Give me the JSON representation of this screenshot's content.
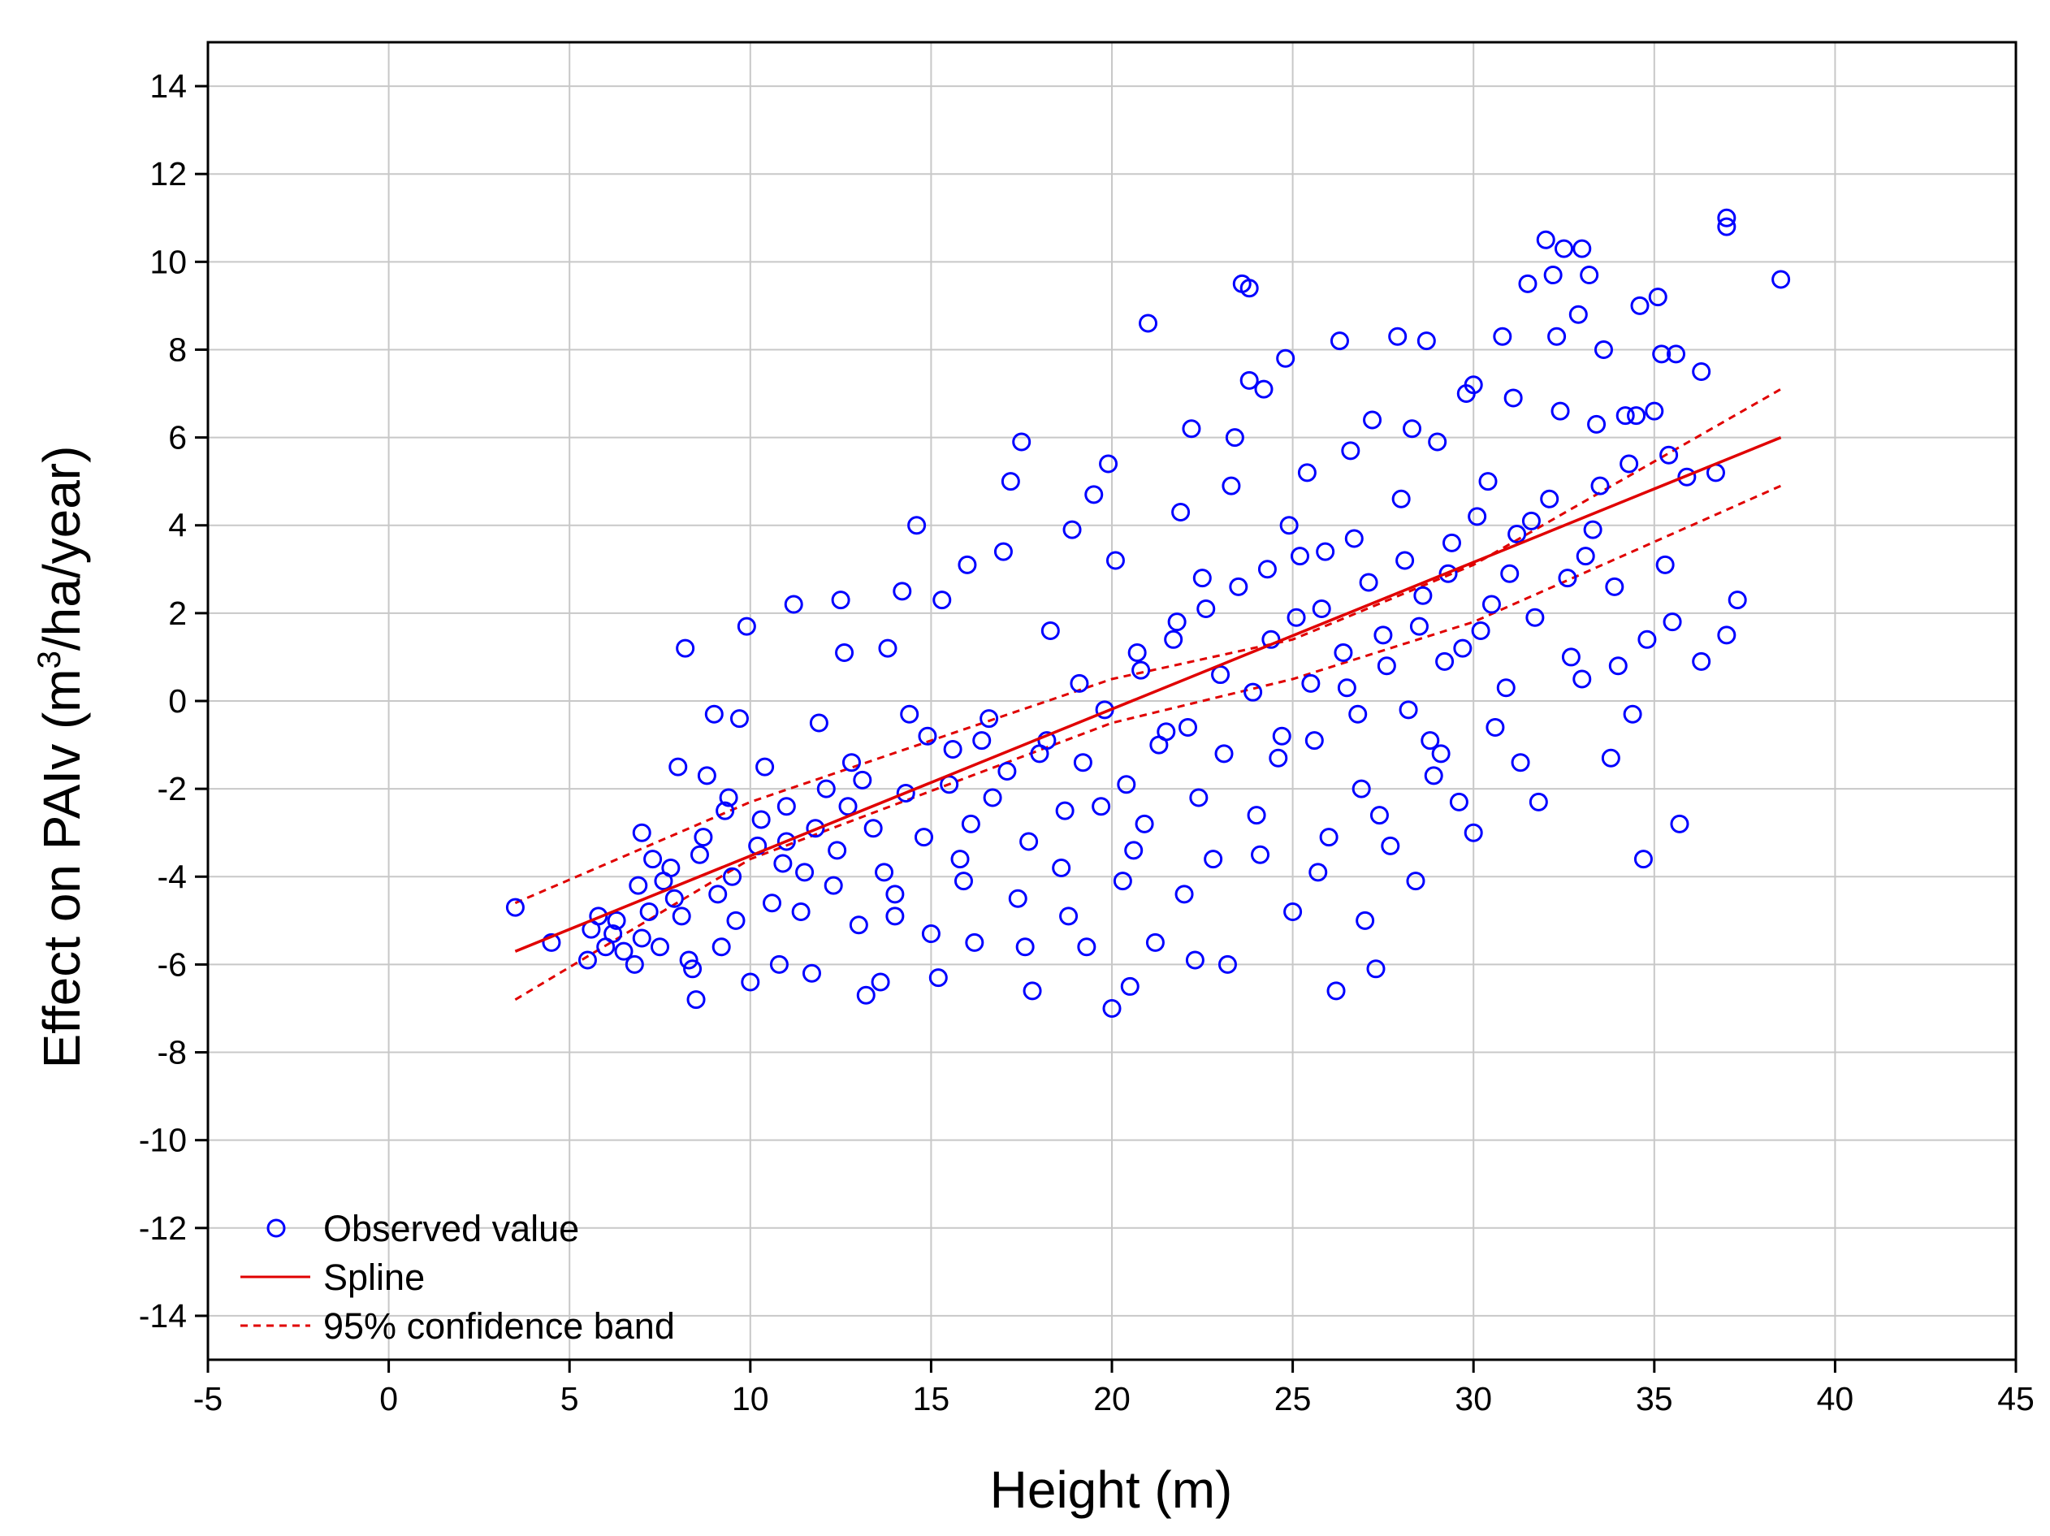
{
  "chart_data": {
    "type": "scatter",
    "title": "",
    "xlabel": "Height (m)",
    "ylabel_parts": {
      "before": "Effect on PAIv (m",
      "superscript": "3",
      "after": "/ha/year)"
    },
    "xlim": [
      -5,
      45
    ],
    "ylim": [
      -15,
      15
    ],
    "xticks": [
      -5,
      0,
      5,
      10,
      15,
      20,
      25,
      30,
      35,
      40,
      45
    ],
    "yticks": [
      -14,
      -12,
      -10,
      -8,
      -6,
      -4,
      -2,
      0,
      2,
      4,
      6,
      8,
      10,
      12,
      14
    ],
    "grid": true,
    "legend_position": "bottom-left",
    "legend": [
      {
        "label": "Observed value",
        "style": "circle-marker"
      },
      {
        "label": "Spline",
        "style": "solid-line"
      },
      {
        "label": "95% confidence band",
        "style": "dashed-line"
      }
    ],
    "colors": {
      "points": "#0000ff",
      "spline": "#e00000",
      "band": "#e00000",
      "grid": "#c8c8c8"
    },
    "series": [
      {
        "name": "Observed value",
        "points": [
          [
            3.5,
            -4.7
          ],
          [
            4.5,
            -5.5
          ],
          [
            5.5,
            -5.9
          ],
          [
            5.6,
            -5.2
          ],
          [
            6.0,
            -5.6
          ],
          [
            6.3,
            -5.0
          ],
          [
            6.5,
            -5.7
          ],
          [
            6.8,
            -6.0
          ],
          [
            7.0,
            -5.4
          ],
          [
            7.2,
            -4.8
          ],
          [
            7.0,
            -3.0
          ],
          [
            7.3,
            -3.6
          ],
          [
            7.6,
            -4.1
          ],
          [
            7.9,
            -4.5
          ],
          [
            8.0,
            -1.5
          ],
          [
            8.2,
            1.2
          ],
          [
            8.3,
            -5.9
          ],
          [
            8.4,
            -6.1
          ],
          [
            8.5,
            -6.8
          ],
          [
            8.6,
            -3.5
          ],
          [
            8.8,
            -1.7
          ],
          [
            9.0,
            -0.3
          ],
          [
            9.2,
            -5.6
          ],
          [
            9.3,
            -2.5
          ],
          [
            9.5,
            -4.0
          ],
          [
            9.7,
            -0.4
          ],
          [
            9.9,
            1.7
          ],
          [
            10.0,
            -6.4
          ],
          [
            10.2,
            -3.3
          ],
          [
            10.4,
            -1.5
          ],
          [
            10.6,
            -4.6
          ],
          [
            10.8,
            -6.0
          ],
          [
            11.0,
            -2.4
          ],
          [
            11.2,
            2.2
          ],
          [
            11.5,
            -3.9
          ],
          [
            11.7,
            -6.2
          ],
          [
            11.9,
            -0.5
          ],
          [
            12.1,
            -2.0
          ],
          [
            12.3,
            -4.2
          ],
          [
            12.5,
            2.3
          ],
          [
            12.6,
            1.1
          ],
          [
            12.8,
            -1.4
          ],
          [
            13.0,
            -5.1
          ],
          [
            13.2,
            -6.7
          ],
          [
            13.4,
            -2.9
          ],
          [
            13.6,
            -6.4
          ],
          [
            13.8,
            1.2
          ],
          [
            14.0,
            -4.4
          ],
          [
            14.2,
            2.5
          ],
          [
            14.4,
            -0.3
          ],
          [
            14.6,
            4.0
          ],
          [
            14.8,
            -3.1
          ],
          [
            15.0,
            -5.3
          ],
          [
            15.2,
            -6.3
          ],
          [
            15.3,
            2.3
          ],
          [
            15.5,
            -1.9
          ],
          [
            15.8,
            -3.6
          ],
          [
            16.0,
            3.1
          ],
          [
            16.2,
            -5.5
          ],
          [
            16.4,
            -0.9
          ],
          [
            16.7,
            -2.2
          ],
          [
            17.0,
            3.4
          ],
          [
            17.2,
            5.0
          ],
          [
            17.5,
            5.9
          ],
          [
            17.6,
            -5.6
          ],
          [
            17.8,
            -6.6
          ],
          [
            18.0,
            -1.2
          ],
          [
            18.3,
            1.6
          ],
          [
            18.6,
            -3.8
          ],
          [
            18.9,
            3.9
          ],
          [
            19.1,
            0.4
          ],
          [
            19.3,
            -5.6
          ],
          [
            19.5,
            4.7
          ],
          [
            19.7,
            -2.4
          ],
          [
            19.9,
            5.4
          ],
          [
            20.0,
            -7.0
          ],
          [
            20.1,
            3.2
          ],
          [
            20.3,
            -4.1
          ],
          [
            20.5,
            -6.5
          ],
          [
            20.7,
            1.1
          ],
          [
            20.9,
            -2.8
          ],
          [
            21.0,
            8.6
          ],
          [
            21.2,
            -5.5
          ],
          [
            21.5,
            -0.7
          ],
          [
            21.8,
            1.8
          ],
          [
            22.0,
            -4.4
          ],
          [
            22.2,
            6.2
          ],
          [
            22.3,
            -5.9
          ],
          [
            22.5,
            2.8
          ],
          [
            22.8,
            -3.6
          ],
          [
            23.0,
            0.6
          ],
          [
            23.2,
            -6.0
          ],
          [
            23.4,
            6.0
          ],
          [
            23.6,
            9.5
          ],
          [
            23.8,
            9.4
          ],
          [
            23.8,
            7.3
          ],
          [
            24.0,
            -2.6
          ],
          [
            24.2,
            7.1
          ],
          [
            24.4,
            1.4
          ],
          [
            24.6,
            -1.3
          ],
          [
            24.8,
            7.8
          ],
          [
            25.0,
            -4.8
          ],
          [
            25.2,
            3.3
          ],
          [
            25.4,
            5.2
          ],
          [
            25.6,
            -0.9
          ],
          [
            25.8,
            2.1
          ],
          [
            26.0,
            -3.1
          ],
          [
            26.2,
            -6.6
          ],
          [
            26.3,
            8.2
          ],
          [
            26.5,
            0.3
          ],
          [
            26.7,
            3.7
          ],
          [
            26.9,
            -2.0
          ],
          [
            27.0,
            -5.0
          ],
          [
            27.2,
            6.4
          ],
          [
            27.3,
            -6.1
          ],
          [
            27.5,
            1.5
          ],
          [
            27.7,
            -3.3
          ],
          [
            27.9,
            8.3
          ],
          [
            28.0,
            4.6
          ],
          [
            28.2,
            -0.2
          ],
          [
            28.4,
            -4.1
          ],
          [
            28.6,
            2.4
          ],
          [
            28.7,
            8.2
          ],
          [
            28.9,
            -1.7
          ],
          [
            29.0,
            5.9
          ],
          [
            29.2,
            0.9
          ],
          [
            29.4,
            3.6
          ],
          [
            29.6,
            -2.3
          ],
          [
            29.8,
            7.0
          ],
          [
            30.0,
            -3.0
          ],
          [
            30.0,
            7.2
          ],
          [
            30.2,
            1.6
          ],
          [
            30.4,
            5.0
          ],
          [
            30.6,
            -0.6
          ],
          [
            30.8,
            8.3
          ],
          [
            31.0,
            2.9
          ],
          [
            31.1,
            6.9
          ],
          [
            31.3,
            -1.4
          ],
          [
            31.5,
            9.5
          ],
          [
            31.6,
            4.1
          ],
          [
            31.8,
            -2.3
          ],
          [
            32.0,
            10.5
          ],
          [
            32.2,
            9.7
          ],
          [
            32.3,
            8.3
          ],
          [
            32.4,
            6.6
          ],
          [
            32.5,
            10.3
          ],
          [
            32.7,
            1.0
          ],
          [
            32.9,
            8.8
          ],
          [
            33.0,
            10.3
          ],
          [
            33.1,
            3.3
          ],
          [
            33.2,
            9.7
          ],
          [
            33.4,
            6.3
          ],
          [
            33.5,
            4.9
          ],
          [
            33.6,
            8.0
          ],
          [
            33.8,
            -1.3
          ],
          [
            34.0,
            0.8
          ],
          [
            34.2,
            6.5
          ],
          [
            34.4,
            -0.3
          ],
          [
            34.5,
            6.5
          ],
          [
            34.6,
            9.0
          ],
          [
            34.7,
            -3.6
          ],
          [
            34.8,
            1.4
          ],
          [
            35.0,
            6.6
          ],
          [
            35.1,
            9.2
          ],
          [
            35.2,
            7.9
          ],
          [
            35.4,
            5.6
          ],
          [
            35.5,
            1.8
          ],
          [
            35.6,
            7.9
          ],
          [
            35.7,
            -2.8
          ],
          [
            35.9,
            5.1
          ],
          [
            36.3,
            0.9
          ],
          [
            36.3,
            7.5
          ],
          [
            36.7,
            5.2
          ],
          [
            37.0,
            10.8
          ],
          [
            37.0,
            11.0
          ],
          [
            37.0,
            1.5
          ],
          [
            37.3,
            2.3
          ],
          [
            38.5,
            9.6
          ],
          [
            6.2,
            -5.3
          ],
          [
            6.9,
            -4.2
          ],
          [
            7.5,
            -5.6
          ],
          [
            8.1,
            -4.9
          ],
          [
            8.7,
            -3.1
          ],
          [
            9.1,
            -4.4
          ],
          [
            9.6,
            -5.0
          ],
          [
            10.3,
            -2.7
          ],
          [
            10.9,
            -3.7
          ],
          [
            11.4,
            -4.8
          ],
          [
            11.8,
            -2.9
          ],
          [
            12.4,
            -3.4
          ],
          [
            13.1,
            -1.8
          ],
          [
            13.7,
            -3.9
          ],
          [
            14.3,
            -2.1
          ],
          [
            14.9,
            -0.8
          ],
          [
            15.6,
            -1.1
          ],
          [
            16.1,
            -2.8
          ],
          [
            16.6,
            -0.4
          ],
          [
            17.1,
            -1.6
          ],
          [
            17.7,
            -3.2
          ],
          [
            18.2,
            -0.9
          ],
          [
            18.7,
            -2.5
          ],
          [
            19.2,
            -1.4
          ],
          [
            19.8,
            -0.2
          ],
          [
            20.4,
            -1.9
          ],
          [
            20.8,
            0.7
          ],
          [
            21.3,
            -1.0
          ],
          [
            21.7,
            1.4
          ],
          [
            22.1,
            -0.6
          ],
          [
            22.6,
            2.1
          ],
          [
            23.1,
            -1.2
          ],
          [
            23.5,
            2.6
          ],
          [
            23.9,
            0.2
          ],
          [
            24.3,
            3.0
          ],
          [
            24.7,
            -0.8
          ],
          [
            25.1,
            1.9
          ],
          [
            25.5,
            0.4
          ],
          [
            25.9,
            3.4
          ],
          [
            26.4,
            1.1
          ],
          [
            26.8,
            -0.3
          ],
          [
            27.1,
            2.7
          ],
          [
            27.6,
            0.8
          ],
          [
            28.1,
            3.2
          ],
          [
            28.5,
            1.7
          ],
          [
            28.8,
            -0.9
          ],
          [
            29.3,
            2.9
          ],
          [
            29.7,
            1.2
          ],
          [
            30.1,
            4.2
          ],
          [
            30.5,
            2.2
          ],
          [
            30.9,
            0.3
          ],
          [
            31.2,
            3.8
          ],
          [
            31.7,
            1.9
          ],
          [
            32.1,
            4.6
          ],
          [
            32.6,
            2.8
          ],
          [
            33.0,
            0.5
          ],
          [
            33.3,
            3.9
          ],
          [
            33.9,
            2.6
          ],
          [
            34.3,
            5.4
          ],
          [
            35.3,
            3.1
          ],
          [
            5.8,
            -4.9
          ],
          [
            7.8,
            -3.8
          ],
          [
            9.4,
            -2.2
          ],
          [
            11.0,
            -3.2
          ],
          [
            12.7,
            -2.4
          ],
          [
            14.0,
            -4.9
          ],
          [
            15.9,
            -4.1
          ],
          [
            17.4,
            -4.5
          ],
          [
            18.8,
            -4.9
          ],
          [
            20.6,
            -3.4
          ],
          [
            22.4,
            -2.2
          ],
          [
            24.1,
            -3.5
          ],
          [
            25.7,
            -3.9
          ],
          [
            27.4,
            -2.6
          ],
          [
            29.1,
            -1.2
          ],
          [
            21.9,
            4.3
          ],
          [
            23.3,
            4.9
          ],
          [
            24.9,
            4.0
          ],
          [
            26.6,
            5.7
          ],
          [
            28.3,
            6.2
          ]
        ]
      },
      {
        "name": "Spline",
        "points": [
          [
            3.5,
            -5.7
          ],
          [
            38.5,
            6.0
          ]
        ]
      },
      {
        "name": "95% confidence band (upper)",
        "points": [
          [
            3.5,
            -4.6
          ],
          [
            10.0,
            -2.3
          ],
          [
            20.0,
            0.5
          ],
          [
            25.0,
            1.4
          ],
          [
            30.0,
            3.1
          ],
          [
            38.5,
            7.1
          ]
        ]
      },
      {
        "name": "95% confidence band (lower)",
        "points": [
          [
            3.5,
            -6.8
          ],
          [
            10.0,
            -3.6
          ],
          [
            20.0,
            -0.5
          ],
          [
            25.0,
            0.5
          ],
          [
            30.0,
            1.8
          ],
          [
            38.5,
            4.9
          ]
        ]
      }
    ]
  }
}
